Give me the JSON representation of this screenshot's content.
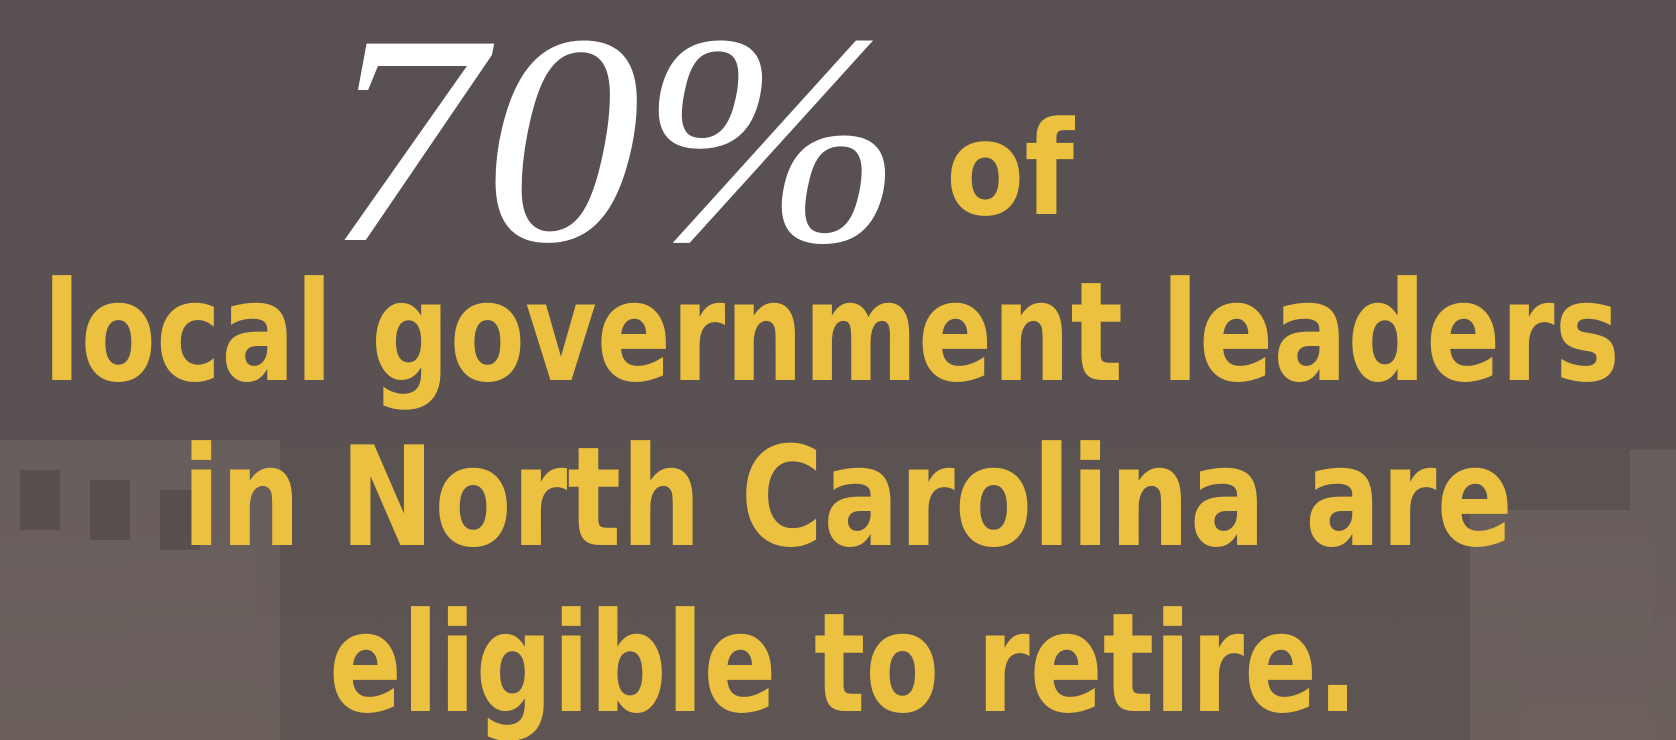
{
  "headline": {
    "stat": "70%",
    "connector": "of"
  },
  "lines": [
    "local government leaders",
    "in North Carolina are",
    "eligible to retire."
  ]
}
